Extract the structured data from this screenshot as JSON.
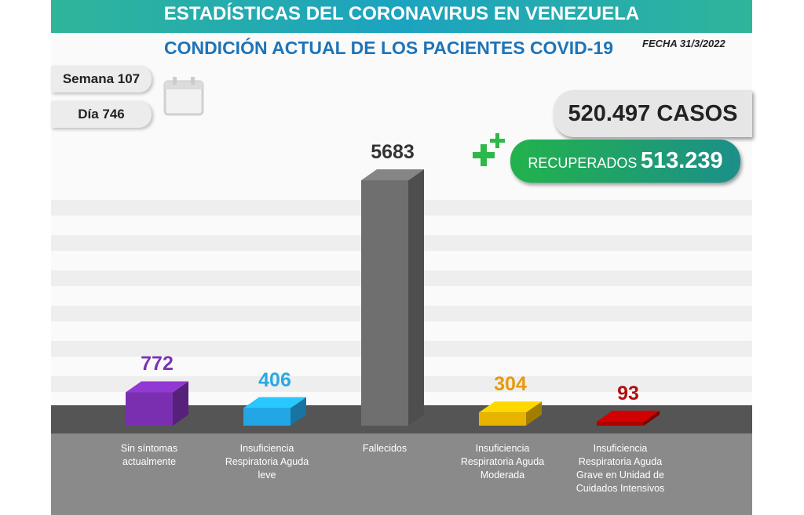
{
  "chart_data": {
    "type": "bar3d",
    "title": "ESTADÍSTICAS DEL CORONAVIRUS EN VENEZUELA",
    "subtitle": "CONDICIÓN ACTUAL DE LOS PACIENTES COVID-19",
    "date": "FECHA 31/3/2022",
    "week": "Semana 107",
    "day": "Día 746",
    "cases": "520.497 CASOS",
    "recovered_label": "RECUPERADOS",
    "recovered_value": "513.239",
    "categories": [
      "Sin síntomas\nactualmente",
      "Insuficiencia\nRespiratoria Aguda\nleve",
      "Fallecidos",
      "Insuficiencia\nRespiratoria Aguda\nModerada",
      "Insuficiencia\nRespiratoria Aguda\nGrave en Unidad de\nCuidados Intensivos"
    ],
    "values": [
      772,
      406,
      5683,
      304,
      93
    ],
    "colors": [
      "#7a2fb0",
      "#22a6e6",
      "#6f6f6f",
      "#e8b400",
      "#b00000"
    ],
    "label_colors": [
      "#7b35b0",
      "#2aa9e2",
      "#333333",
      "#e69a10",
      "#b01010"
    ]
  }
}
